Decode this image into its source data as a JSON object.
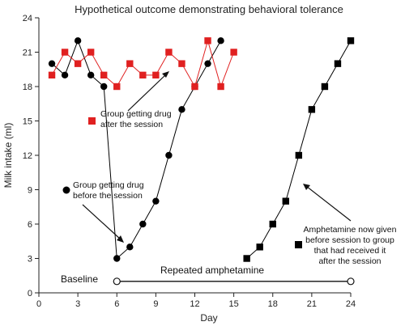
{
  "chart_data": {
    "type": "line",
    "title": "Hypothetical outcome demonstrating behavioral tolerance",
    "xlabel": "Day",
    "ylabel": "Milk intake (ml)",
    "xlim": [
      0,
      24
    ],
    "ylim": [
      0,
      24
    ],
    "xticks": [
      0,
      3,
      6,
      9,
      12,
      15,
      18,
      21,
      24
    ],
    "yticks": [
      0,
      3,
      6,
      9,
      12,
      15,
      18,
      21,
      24
    ],
    "grid": false,
    "series": [
      {
        "name": "Group getting drug before the session",
        "marker": "circle",
        "color": "#000000",
        "x": [
          1,
          2,
          3,
          4,
          5,
          6,
          7,
          8,
          9,
          10,
          11,
          12,
          13,
          14
        ],
        "y": [
          20,
          19,
          22,
          19,
          18,
          3,
          4,
          6,
          8,
          12,
          16,
          18,
          20,
          22
        ]
      },
      {
        "name": "Group getting drug after the session",
        "marker": "square",
        "color": "#e02020",
        "x": [
          1,
          2,
          3,
          4,
          5,
          6,
          7,
          8,
          9,
          10,
          11,
          12,
          13,
          14,
          15
        ],
        "y": [
          19,
          21,
          20,
          21,
          19,
          18,
          20,
          19,
          19,
          21,
          20,
          18,
          22,
          18,
          21
        ]
      },
      {
        "name": "Amphetamine now given before session to group that had received it after the session",
        "marker": "square",
        "color": "#000000",
        "x": [
          16,
          17,
          18,
          19,
          20,
          21,
          22,
          23,
          24
        ],
        "y": [
          3,
          4,
          6,
          8,
          12,
          16,
          18,
          20,
          22
        ]
      }
    ],
    "periods": [
      {
        "label": "Baseline"
      },
      {
        "label": "Repeated amphetamine",
        "x_start": 6,
        "x_end": 24,
        "y": 1
      }
    ],
    "annotations": {
      "after_line1": "Group getting drug",
      "after_line2": "after the session",
      "before_line1": "Group getting drug",
      "before_line2": "before the session",
      "amph_line1": "Amphetamine now given",
      "amph_line2": "before session to group",
      "amph_line3": "that had received it",
      "amph_line4": "after the session"
    }
  }
}
